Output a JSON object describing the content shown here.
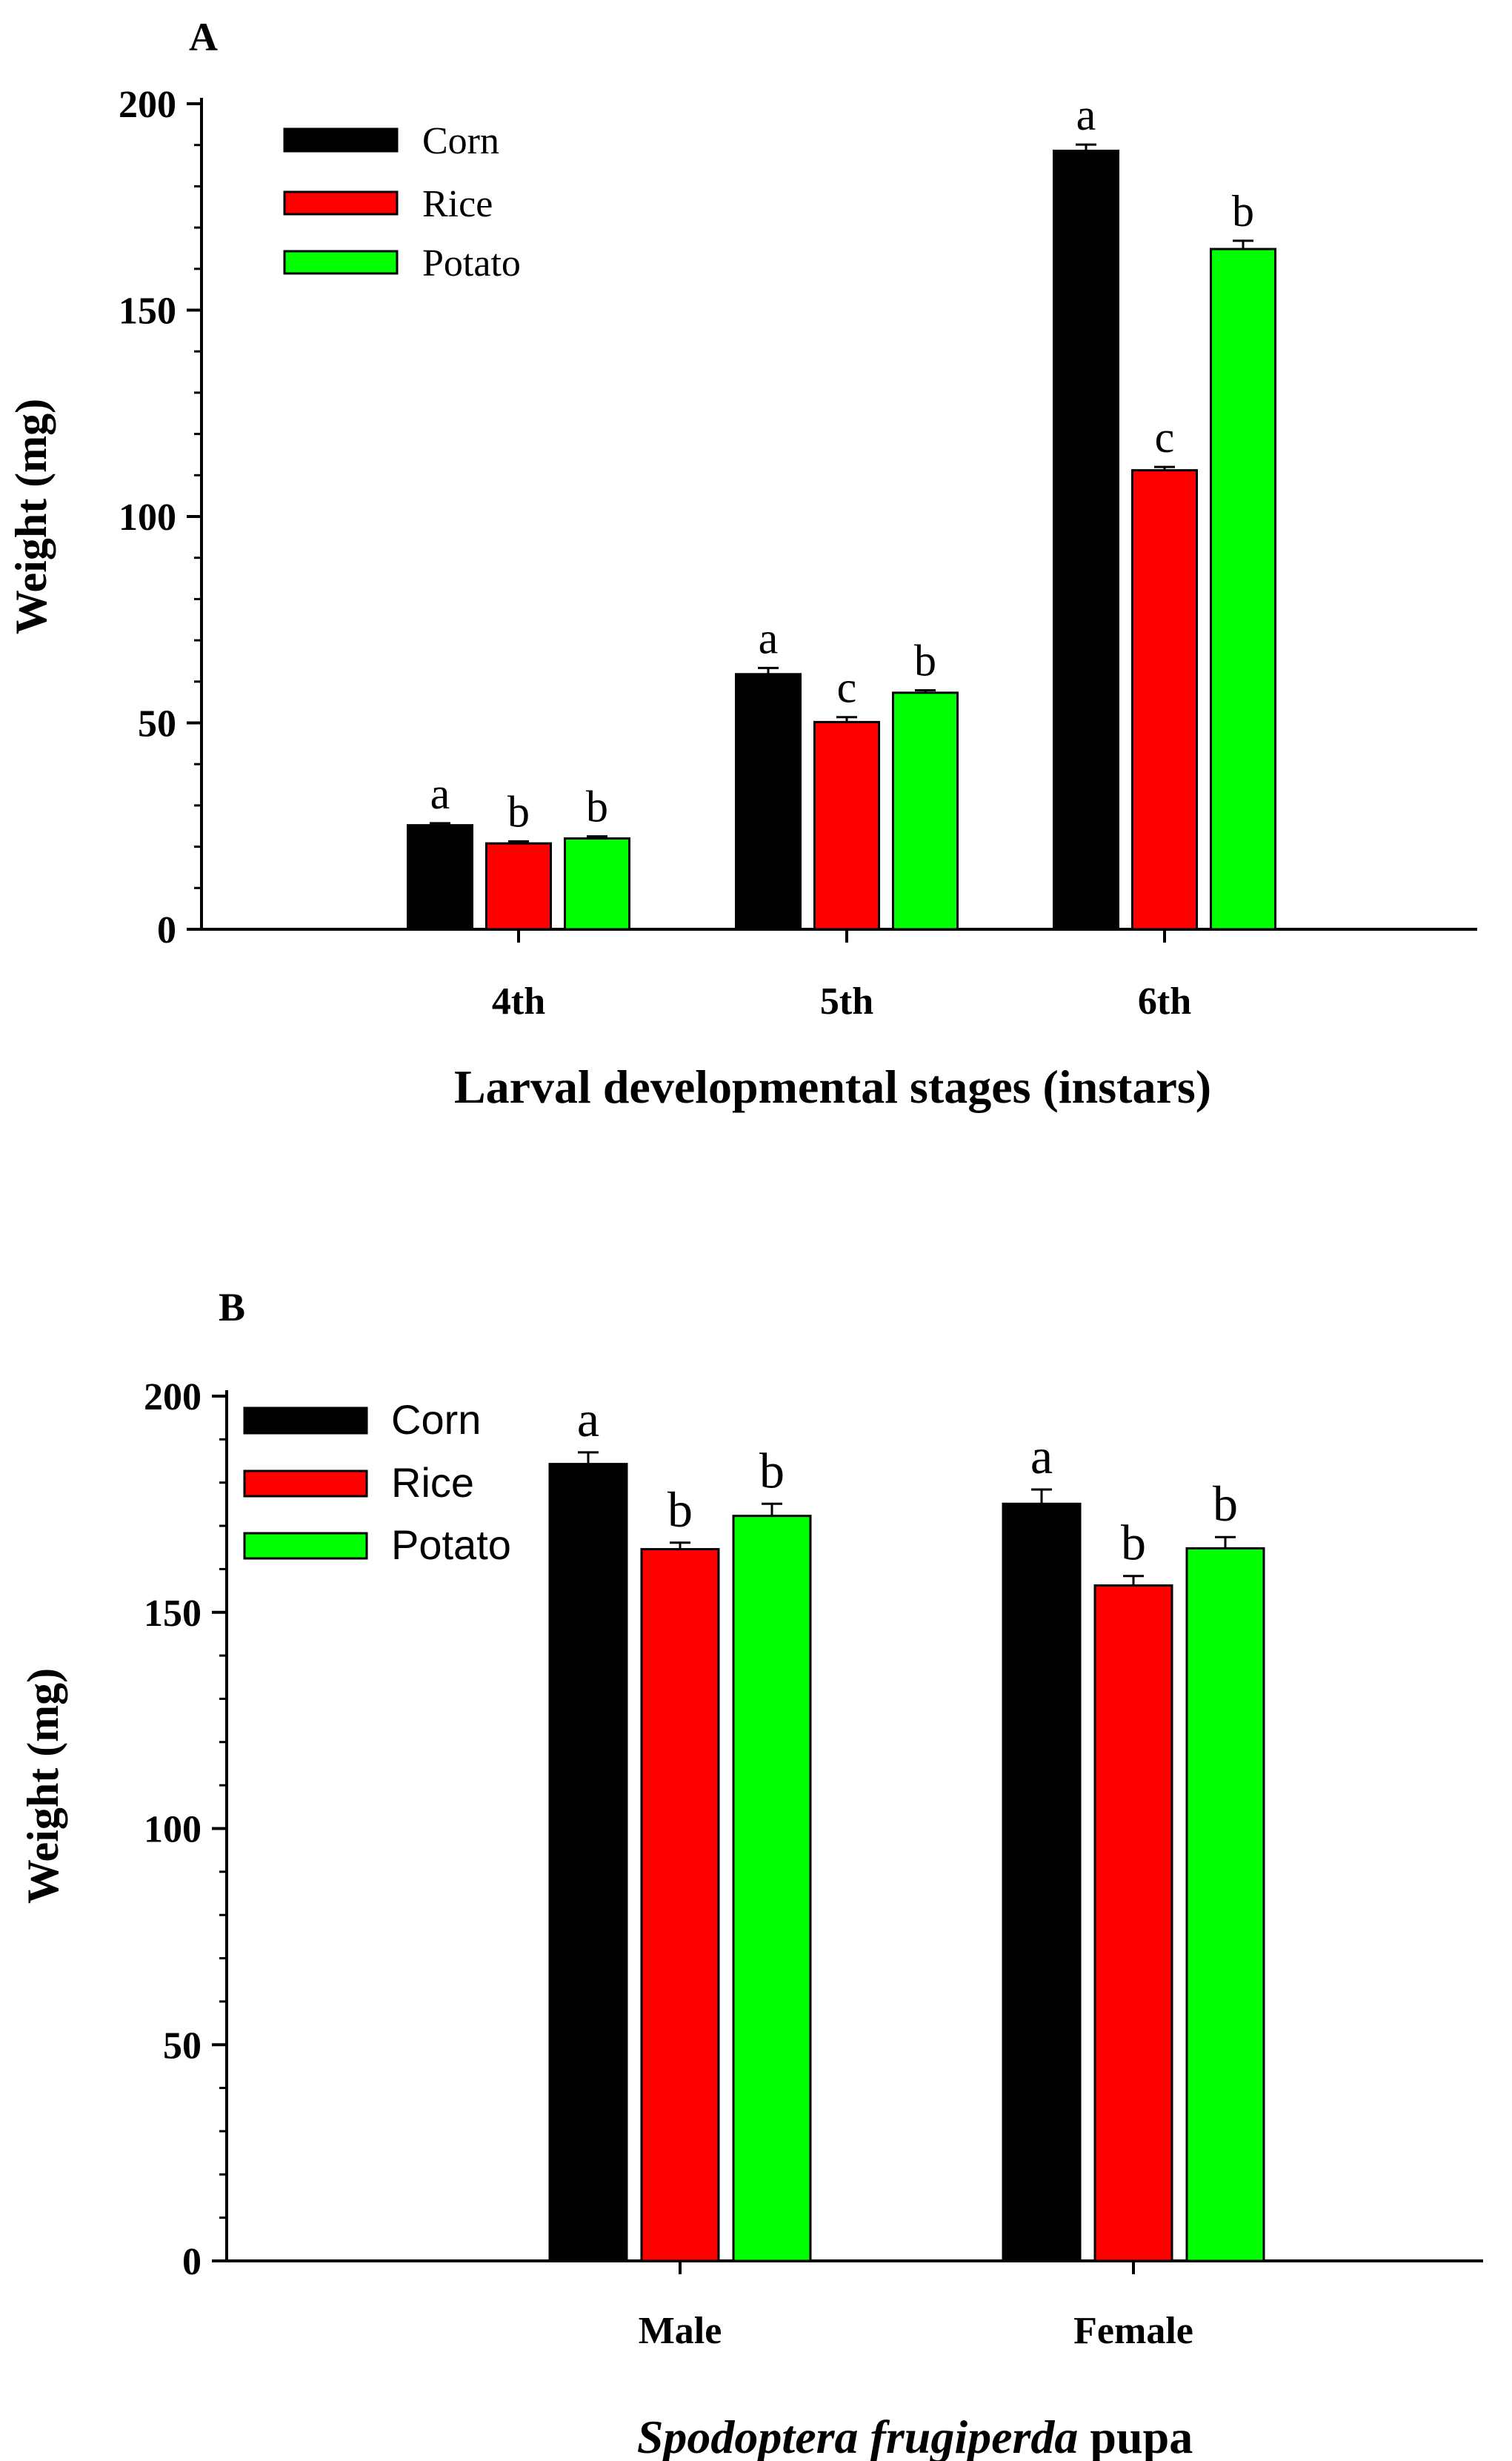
{
  "chart_data": [
    {
      "panel": "A",
      "type": "bar",
      "title": "",
      "xlabel": "Larval developmental stages (instars)",
      "ylabel": "Weight (mg)",
      "ylim": [
        0,
        200
      ],
      "yticks": [
        0,
        50,
        100,
        150,
        200
      ],
      "categories": [
        "4th",
        "5th",
        "6th"
      ],
      "legend": {
        "position": "top-left",
        "entries": [
          "Corn",
          "Rice",
          "Potato"
        ]
      },
      "series": [
        {
          "name": "Corn",
          "color": "#000000",
          "values": [
            25.2,
            61.8,
            188.6
          ],
          "errors": [
            0.5,
            1.5,
            1.5
          ],
          "letters": [
            "a",
            "a",
            "a"
          ]
        },
        {
          "name": "Rice",
          "color": "#ff0000",
          "values": [
            20.8,
            50.2,
            111.2
          ],
          "errors": [
            0.5,
            1.2,
            0.8
          ],
          "letters": [
            "b",
            "c",
            "c"
          ]
        },
        {
          "name": "Potato",
          "color": "#00ff00",
          "values": [
            22.0,
            57.3,
            164.8
          ],
          "errors": [
            0.5,
            0.6,
            2.0
          ],
          "letters": [
            "b",
            "b",
            "b"
          ]
        }
      ]
    },
    {
      "panel": "B",
      "type": "bar",
      "title": "",
      "xlabel_italic": "Spodoptera frugiperda",
      "xlabel_rest": "pupa",
      "ylabel": "Weight (mg)",
      "ylim": [
        0,
        200
      ],
      "yticks": [
        0,
        50,
        100,
        150,
        200
      ],
      "categories": [
        "Male",
        "Female"
      ],
      "legend": {
        "position": "top-left",
        "entries": [
          "Corn",
          "Rice",
          "Potato"
        ]
      },
      "series": [
        {
          "name": "Corn",
          "color": "#000000",
          "values": [
            184.3,
            175.1
          ],
          "errors": [
            2.7,
            3.3
          ],
          "letters": [
            "a",
            "a"
          ]
        },
        {
          "name": "Rice",
          "color": "#ff0000",
          "values": [
            164.6,
            156.2
          ],
          "errors": [
            1.5,
            2.2
          ],
          "letters": [
            "b",
            "b"
          ]
        },
        {
          "name": "Potato",
          "color": "#00ff00",
          "values": [
            172.3,
            164.8
          ],
          "errors": [
            2.8,
            2.6
          ],
          "letters": [
            "b",
            "b"
          ]
        }
      ]
    }
  ]
}
